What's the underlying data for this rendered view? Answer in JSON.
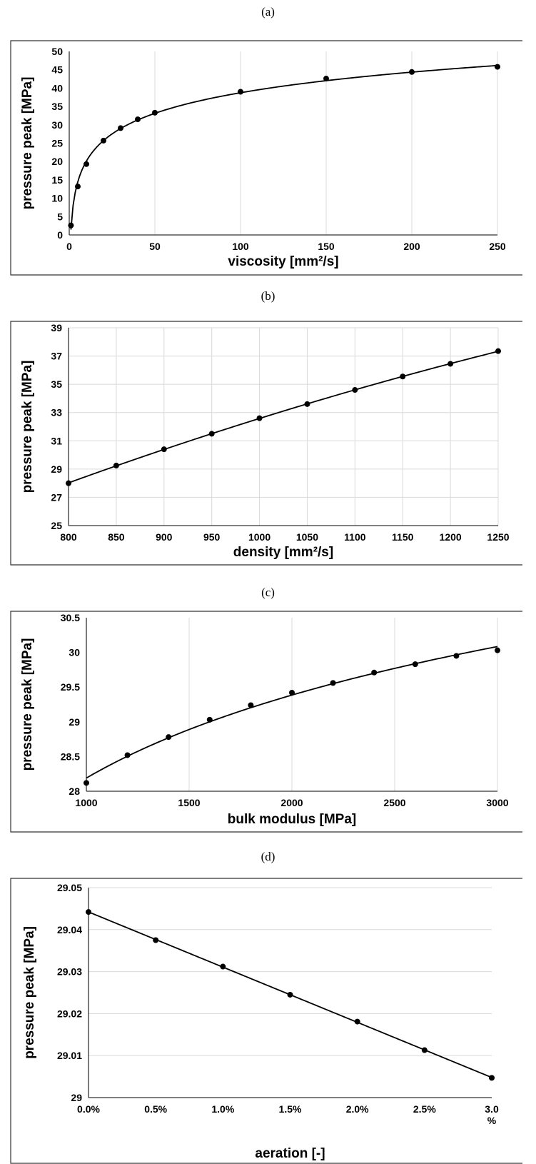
{
  "panels": [
    {
      "label": "(a)"
    },
    {
      "label": "(b)"
    },
    {
      "label": "(c)"
    },
    {
      "label": "(d)"
    }
  ],
  "chart_data": [
    {
      "type": "scatter",
      "xlabel": "viscosity [mm²/s]",
      "ylabel": "pressure peak [MPa]",
      "xlim": [
        0,
        250
      ],
      "ylim": [
        0,
        50
      ],
      "xticks": [
        "0",
        "50",
        "100",
        "150",
        "200",
        "250"
      ],
      "yticks": [
        "0",
        "5",
        "10",
        "15",
        "20",
        "25",
        "30",
        "35",
        "40",
        "45",
        "50"
      ],
      "grid": "vertical",
      "x": [
        1,
        5,
        10,
        20,
        30,
        40,
        50,
        100,
        150,
        200,
        250
      ],
      "y": [
        2.6,
        13.2,
        19.3,
        25.7,
        29.1,
        31.5,
        33.3,
        39.0,
        42.6,
        44.4,
        45.8
      ],
      "trendline": "logarithmic"
    },
    {
      "type": "scatter",
      "xlabel": "density [mm²/s]",
      "ylabel": "pressure peak [MPa]",
      "xlim": [
        800,
        1250
      ],
      "ylim": [
        25,
        39
      ],
      "xticks": [
        "800",
        "850",
        "900",
        "950",
        "1000",
        "1050",
        "1100",
        "1150",
        "1200",
        "1250"
      ],
      "yticks": [
        "25",
        "27",
        "29",
        "31",
        "33",
        "35",
        "37",
        "39"
      ],
      "grid": "both",
      "x": [
        800,
        850,
        900,
        950,
        1000,
        1050,
        1100,
        1150,
        1200,
        1250
      ],
      "y": [
        28.0,
        29.25,
        30.4,
        31.5,
        32.6,
        33.6,
        34.6,
        35.55,
        36.45,
        37.35
      ],
      "trendline": "smooth"
    },
    {
      "type": "scatter",
      "xlabel": "bulk modulus [MPa]",
      "ylabel": "pressure peak [MPa]",
      "xlim": [
        1000,
        3000
      ],
      "ylim": [
        28,
        30.5
      ],
      "xticks": [
        "1000",
        "1500",
        "2000",
        "2500",
        "3000"
      ],
      "yticks": [
        "28",
        "28.5",
        "29",
        "29.5",
        "30",
        "30.5"
      ],
      "grid": "vertical",
      "x": [
        1000,
        1200,
        1400,
        1600,
        1800,
        2000,
        2200,
        2400,
        2600,
        2800,
        3000
      ],
      "y": [
        28.12,
        28.52,
        28.78,
        29.03,
        29.24,
        29.42,
        29.56,
        29.71,
        29.83,
        29.95,
        30.03
      ],
      "trendline": "logarithmic"
    },
    {
      "type": "scatter",
      "xlabel": "aeration [-]",
      "ylabel": "pressure peak [MPa]",
      "xlim": [
        0,
        3
      ],
      "ylim": [
        29,
        29.05
      ],
      "xticks": [
        "0.0%",
        "0.5%",
        "1.0%",
        "1.5%",
        "2.0%",
        "2.5%",
        "3.0\n%"
      ],
      "yticks": [
        "29",
        "29.01",
        "29.02",
        "29.03",
        "29.04",
        "29.05"
      ],
      "grid": "horizontal",
      "x": [
        0,
        0.5,
        1.0,
        1.5,
        2.0,
        2.5,
        3.0
      ],
      "y": [
        29.0442,
        29.0375,
        29.0312,
        29.0245,
        29.0181,
        29.0113,
        29.0047
      ],
      "trendline": "linear"
    }
  ]
}
